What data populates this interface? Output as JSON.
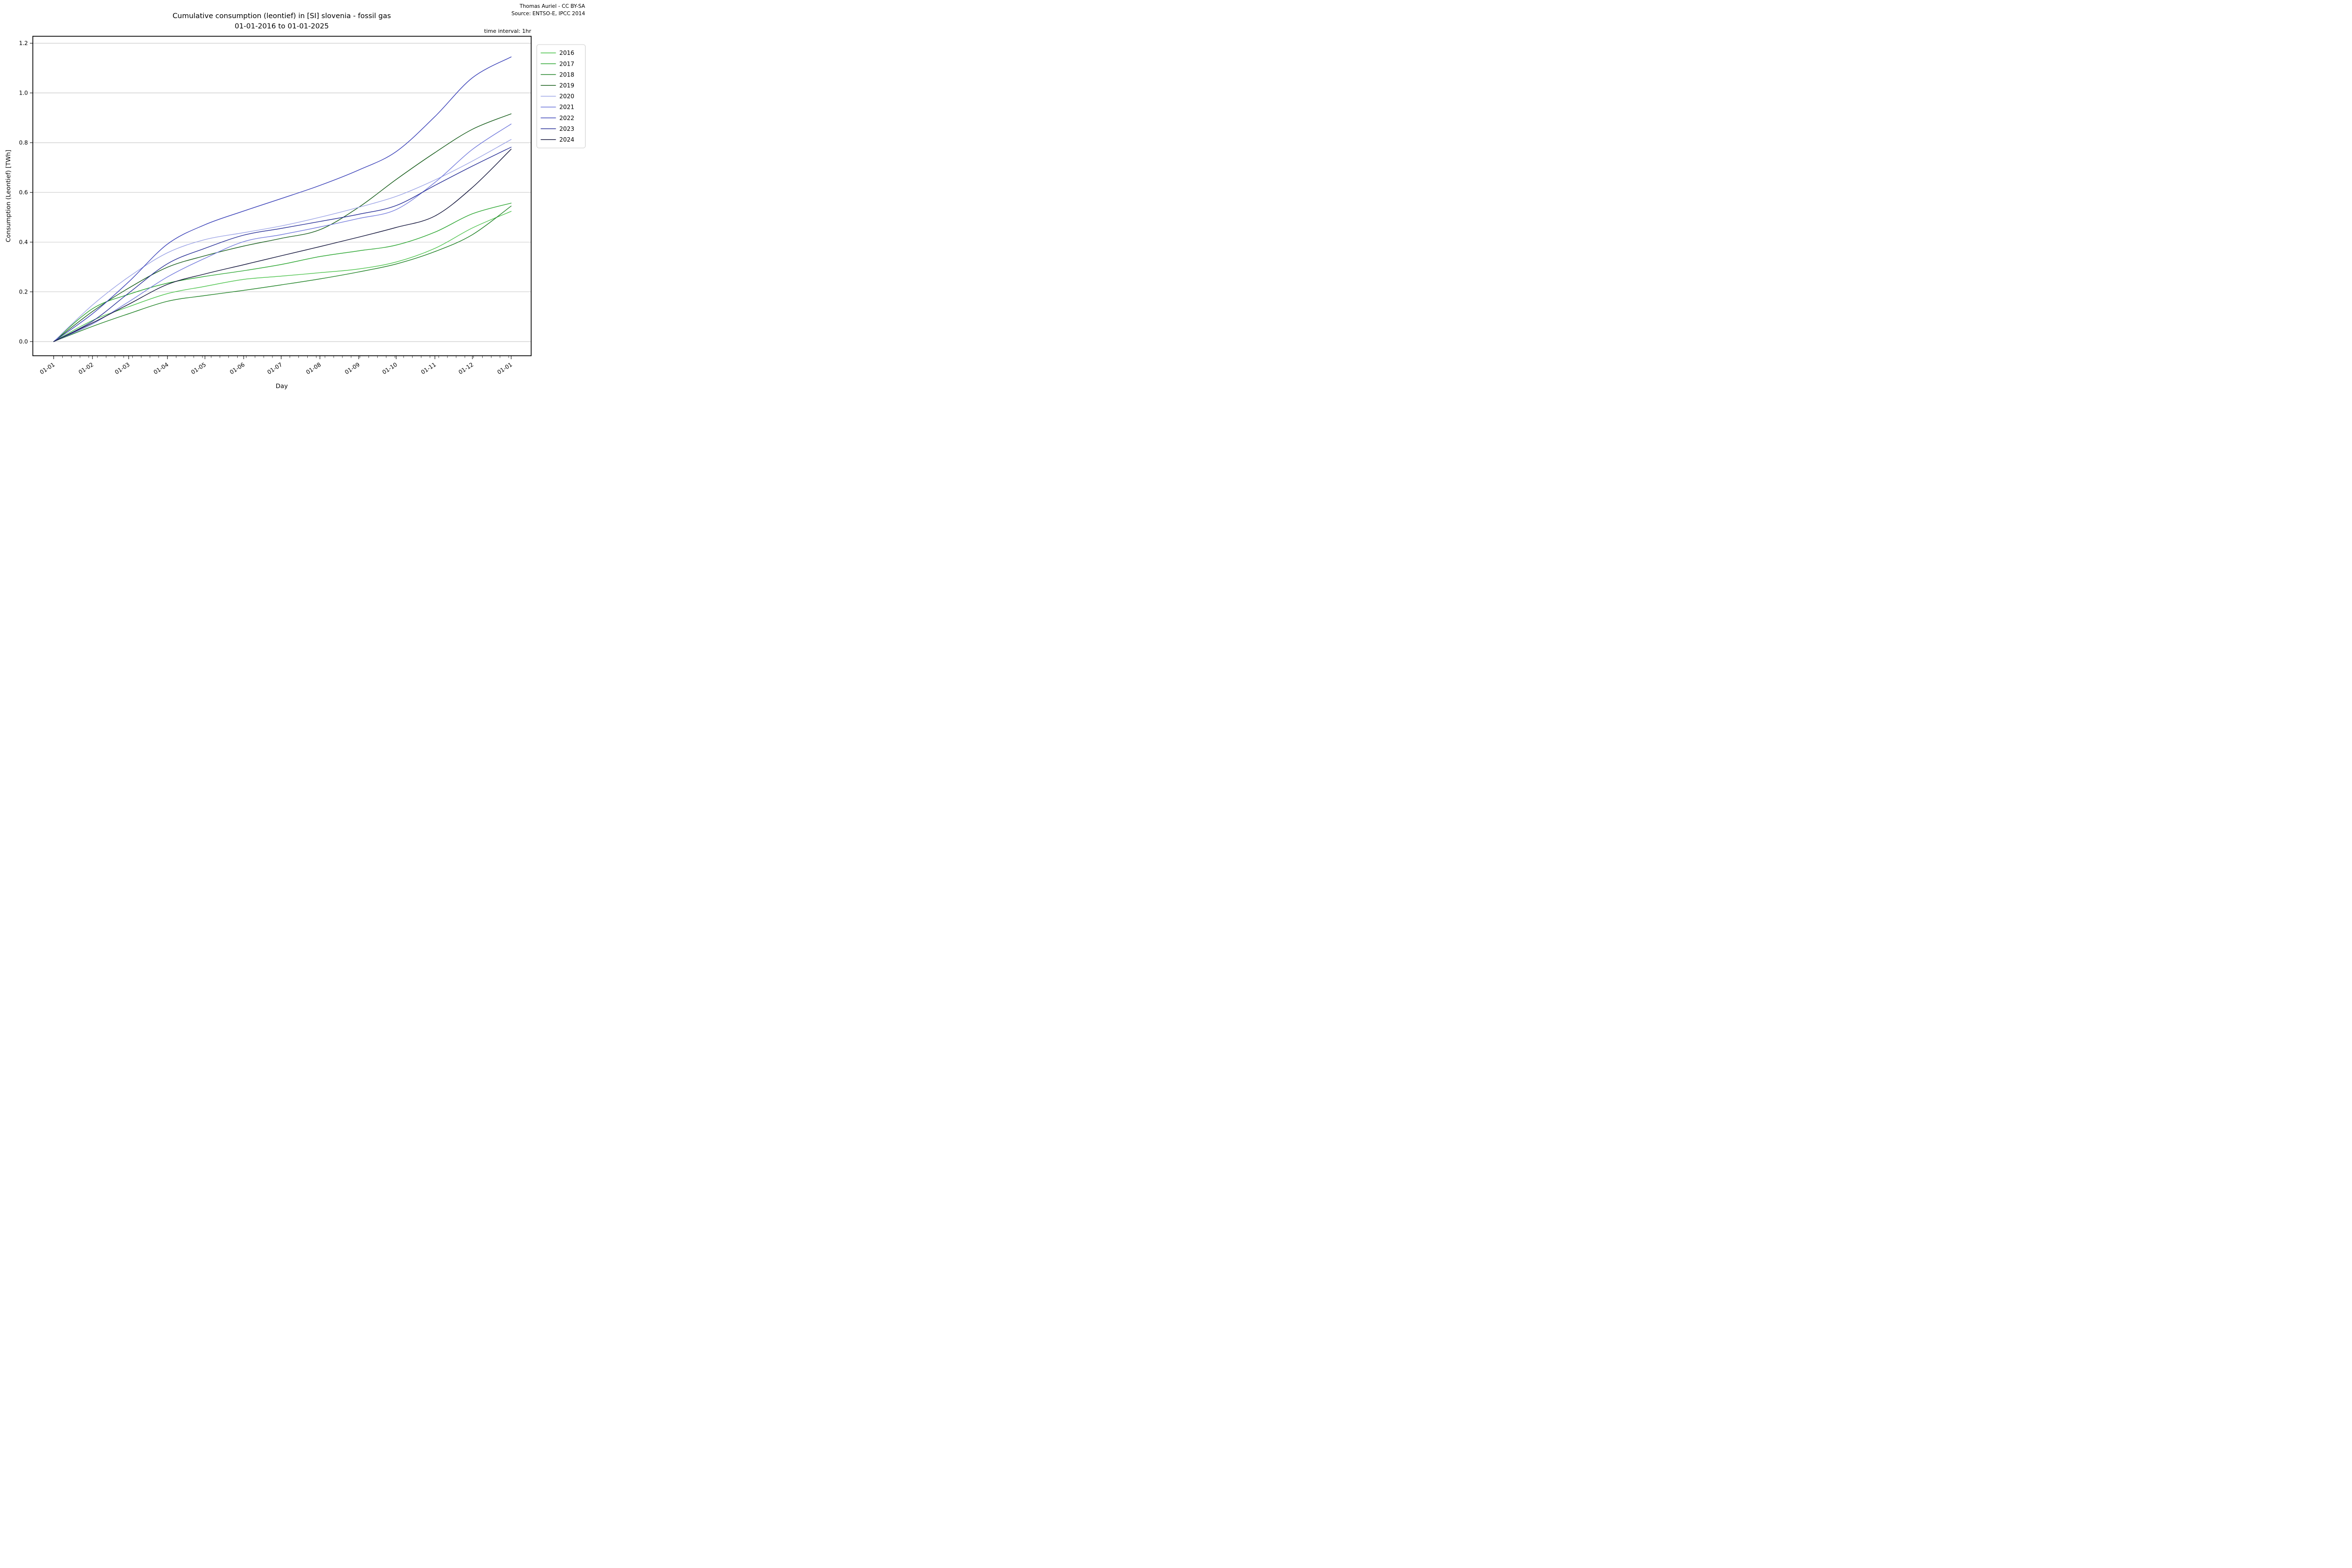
{
  "header": {
    "title_line1": "Cumulative consumption (leontief) in [SI] slovenia - fossil gas",
    "title_line2": "01-01-2016 to 01-01-2025",
    "credit_line1": "Thomas Auriel - CC BY-SA",
    "credit_line2": "Source: ENTSO-E, IPCC 2014",
    "interval_note": "time interval: 1hr"
  },
  "chart_data": {
    "type": "line",
    "title": "Cumulative consumption (leontief) in [SI] slovenia - fossil gas 01-01-2016 to 01-01-2025",
    "xlabel": "Day",
    "ylabel": "Consumption (Leontief) [TWh]",
    "x_tick_labels": [
      "01-01",
      "01-02",
      "01-03",
      "01-04",
      "01-05",
      "01-06",
      "01-07",
      "01-08",
      "01-09",
      "01-10",
      "01-11",
      "01-12",
      "01-01"
    ],
    "month_days": [
      0,
      31,
      60,
      91,
      121,
      152,
      182,
      213,
      244,
      274,
      305,
      335,
      366
    ],
    "minor_tick_step_days": 7,
    "y_ticks": [
      0.0,
      0.2,
      0.4,
      0.6,
      0.8,
      1.0,
      1.2
    ],
    "y_tick_labels": [
      "0.0",
      "0.2",
      "0.4",
      "0.6",
      "0.8",
      "1.0",
      "1.2"
    ],
    "ylim": [
      -0.057,
      1.228
    ],
    "xlim_days": [
      -16.7,
      382
    ],
    "grid": "horizontal-only",
    "legend_position": "upper-right-outside",
    "units": "TWh",
    "series": [
      {
        "name": "2016",
        "color": "#4ec44e",
        "values": [
          0,
          0.085,
          0.14,
          0.193,
          0.222,
          0.25,
          0.263,
          0.277,
          0.292,
          0.32,
          0.375,
          0.457,
          0.524
        ]
      },
      {
        "name": "2017",
        "color": "#29a52f",
        "values": [
          0,
          0.132,
          0.19,
          0.235,
          0.262,
          0.285,
          0.31,
          0.342,
          0.365,
          0.388,
          0.44,
          0.514,
          0.557
        ]
      },
      {
        "name": "2018",
        "color": "#1d8123",
        "values": [
          0,
          0.061,
          0.112,
          0.162,
          0.185,
          0.206,
          0.228,
          0.252,
          0.28,
          0.312,
          0.362,
          0.43,
          0.545
        ]
      },
      {
        "name": "2019",
        "color": "#155c19",
        "values": [
          0,
          0.121,
          0.215,
          0.299,
          0.345,
          0.384,
          0.415,
          0.45,
          0.54,
          0.652,
          0.76,
          0.854,
          0.916
        ]
      },
      {
        "name": "2020",
        "color": "#9ba3e6",
        "values": [
          0,
          0.147,
          0.26,
          0.357,
          0.41,
          0.438,
          0.465,
          0.5,
          0.54,
          0.584,
          0.65,
          0.726,
          0.813
        ]
      },
      {
        "name": "2021",
        "color": "#7179dc",
        "values": [
          0,
          0.071,
          0.16,
          0.26,
          0.335,
          0.402,
          0.43,
          0.461,
          0.495,
          0.531,
          0.64,
          0.773,
          0.875
        ]
      },
      {
        "name": "2022",
        "color": "#3a41b8",
        "values": [
          0,
          0.112,
          0.24,
          0.392,
          0.47,
          0.525,
          0.575,
          0.628,
          0.69,
          0.764,
          0.905,
          1.061,
          1.145
        ]
      },
      {
        "name": "2023",
        "color": "#272e96",
        "values": [
          0,
          0.082,
          0.195,
          0.313,
          0.375,
          0.428,
          0.455,
          0.483,
          0.512,
          0.547,
          0.628,
          0.706,
          0.782
        ]
      },
      {
        "name": "2024",
        "color": "#0f1138",
        "values": [
          0,
          0.075,
          0.15,
          0.23,
          0.272,
          0.309,
          0.345,
          0.382,
          0.42,
          0.459,
          0.505,
          0.62,
          0.774
        ]
      }
    ]
  }
}
